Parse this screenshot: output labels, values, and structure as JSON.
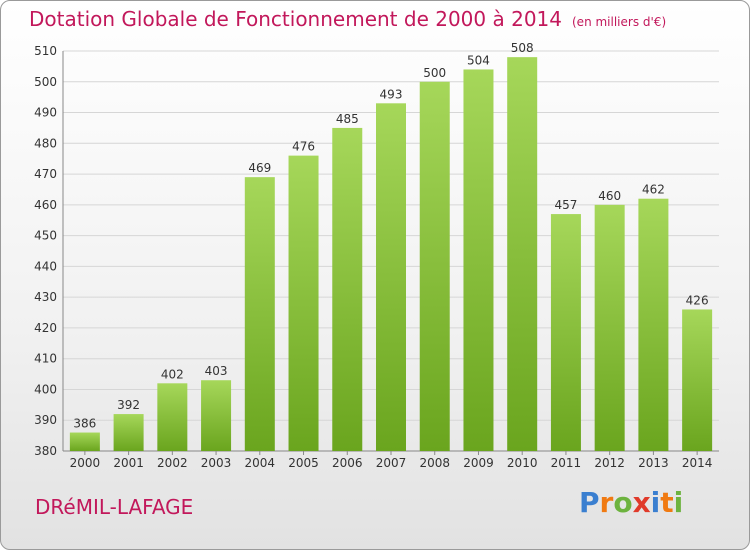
{
  "title": "Dotation Globale de Fonctionnement de 2000 à 2014",
  "unit_note": "(en milliers d'€)",
  "commune": "DRéMIL-LAFAGE",
  "logo": {
    "letters": [
      "P",
      "r",
      "o",
      "x",
      "i",
      "t",
      "i"
    ],
    "colors": [
      "#3a7fd0",
      "#f07a12",
      "#6db33f",
      "#e03a2a",
      "#3a7fd0",
      "#f07a12",
      "#6db33f"
    ]
  },
  "colors": {
    "bar_light": "#a6d75a",
    "bar_dark": "#6aa51e",
    "title": "#c2185b",
    "grid": "#d6d6d6"
  },
  "chart_data": {
    "type": "bar",
    "categories": [
      "2000",
      "2001",
      "2002",
      "2003",
      "2004",
      "2005",
      "2006",
      "2007",
      "2008",
      "2009",
      "2010",
      "2011",
      "2012",
      "2013",
      "2014"
    ],
    "values": [
      386,
      392,
      402,
      403,
      469,
      476,
      485,
      493,
      500,
      504,
      508,
      457,
      460,
      462,
      426
    ],
    "title": "Dotation Globale de Fonctionnement de 2000 à 2014",
    "xlabel": "",
    "ylabel": "",
    "ylim": [
      380,
      510
    ],
    "yticks": [
      380,
      390,
      400,
      410,
      420,
      430,
      440,
      450,
      460,
      470,
      480,
      490,
      500,
      510
    ],
    "grid": true
  }
}
